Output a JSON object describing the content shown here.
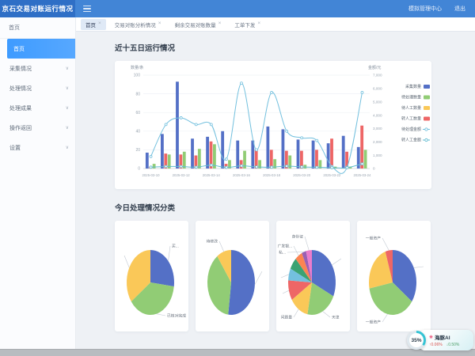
{
  "topbar": {
    "title": "京石交易对账运行情况",
    "links": [
      "模拟管理中心",
      "退出"
    ]
  },
  "sidebar": {
    "header_item": "首页",
    "items": [
      {
        "label": "首页",
        "active": true,
        "expandable": false
      },
      {
        "label": "采集情况",
        "active": false,
        "expandable": true
      },
      {
        "label": "处理情况",
        "active": false,
        "expandable": true
      },
      {
        "label": "处理成果",
        "active": false,
        "expandable": true
      },
      {
        "label": "操作返回",
        "active": false,
        "expandable": true
      },
      {
        "label": "设置",
        "active": false,
        "expandable": true
      }
    ]
  },
  "tabs": [
    {
      "label": "首页",
      "active": true,
      "closable": true
    },
    {
      "label": "交易对账分析情况",
      "active": false,
      "closable": true
    },
    {
      "label": "剩余交易对账数量",
      "active": false,
      "closable": true
    },
    {
      "label": "工单下发",
      "active": false,
      "closable": true
    }
  ],
  "sections": {
    "chart_title": "近十五日运行情况",
    "pies_title": "今日处理情况分类"
  },
  "chart_data": [
    {
      "type": "bar",
      "subtype": "bar+line combo",
      "title": "近十五日运行情况",
      "x": [
        "2025-03-10",
        "2025-03-11",
        "2025-03-12",
        "2025-03-13",
        "2025-03-14",
        "2025-03-15",
        "2025-03-16",
        "2025-03-17",
        "2025-03-18",
        "2025-03-19",
        "2025-03-20",
        "2025-03-21",
        "2025-03-22",
        "2025-03-23",
        "2025-03-24"
      ],
      "x_label_every": 2,
      "left_axis": {
        "label": "数量/条",
        "min": 0,
        "max": 100,
        "step": 20
      },
      "right_axis": {
        "label": "金额/元",
        "min": 0,
        "max": 7000,
        "step": 1000
      },
      "legend_position": "right",
      "grid": true,
      "series": [
        {
          "name": "采集数量",
          "kind": "bar",
          "color": "#5470c6",
          "slot": 0,
          "values": [
            17,
            37,
            93,
            32,
            34,
            40,
            30,
            30,
            45,
            42,
            31,
            30,
            27,
            35,
            23
          ]
        },
        {
          "name": "待处理数量",
          "kind": "bar",
          "color": "#91cc75",
          "slot": 2,
          "values": [
            5,
            15,
            18,
            21,
            26,
            9,
            19,
            9,
            10,
            14,
            4,
            9,
            2,
            2,
            20
          ]
        },
        {
          "name": "待人工数量",
          "kind": "bar",
          "color": "#fac858",
          "slot": 3,
          "values": [
            0,
            0,
            0,
            0,
            0,
            0,
            0,
            0,
            0,
            0,
            0,
            0,
            0,
            0,
            0
          ]
        },
        {
          "name": "转人工数量",
          "kind": "bar",
          "color": "#ee6666",
          "slot": 1,
          "values": [
            2,
            16,
            15,
            14,
            29,
            5,
            9,
            20,
            20,
            19,
            19,
            20,
            32,
            18,
            46
          ]
        },
        {
          "name": "待处理金额",
          "kind": "line",
          "axis": "right",
          "color": "#73c0de",
          "values": [
            900,
            3300,
            3800,
            3300,
            3300,
            700,
            6400,
            1400,
            5700,
            2800,
            2300,
            2100,
            150,
            100,
            5700
          ]
        },
        {
          "name": "转人工金额",
          "kind": "line",
          "axis": "right",
          "color": "#62bcd2",
          "values": [
            100,
            150,
            150,
            100,
            250,
            80,
            200,
            120,
            100,
            180,
            120,
            90,
            60,
            60,
            350
          ]
        }
      ]
    },
    {
      "type": "pie",
      "title": "今日处理情况分类-1",
      "slices": [
        {
          "label": "买...",
          "value": 27,
          "color": "#5470c6",
          "leader": true,
          "label_pos": [
            70,
            32
          ]
        },
        {
          "label": "已核对完成",
          "value": 38,
          "color": "#91cc75",
          "leader": true,
          "label_pos": [
            64,
            120
          ]
        },
        {
          "label": "",
          "value": 35,
          "color": "#fac858",
          "leader": true,
          "label_pos": [
            12,
            44
          ]
        }
      ]
    },
    {
      "type": "pie",
      "title": "今日处理情况分类-2",
      "slices": [
        {
          "label": "",
          "value": 52,
          "color": "#5470c6",
          "leader": true,
          "label_pos": [
            84,
            64
          ]
        },
        {
          "label": "",
          "value": 38,
          "color": "#91cc75",
          "leader": false
        },
        {
          "label": "待修改",
          "value": 10,
          "color": "#fac858",
          "leader": true,
          "label_pos": [
            30,
            26
          ]
        }
      ]
    },
    {
      "type": "pie",
      "title": "今日处理情况分类-3",
      "slices": [
        {
          "label": "",
          "value": 32,
          "color": "#5470c6",
          "leader": true,
          "label_pos": [
            82,
            48
          ]
        },
        {
          "label": "天津",
          "value": 21,
          "color": "#91cc75",
          "leader": true,
          "label_pos": [
            68,
            122
          ]
        },
        {
          "label": "问题量",
          "value": 13,
          "color": "#fac858",
          "leader": true,
          "label_pos": [
            22,
            122
          ]
        },
        {
          "label": "",
          "value": 10,
          "color": "#ee6666",
          "leader": true,
          "label_pos": [
            8,
            92
          ]
        },
        {
          "label": "",
          "value": 6,
          "color": "#73c0de",
          "leader": true,
          "label_pos": [
            6,
            72
          ]
        },
        {
          "label": "",
          "value": 6,
          "color": "#3ba272",
          "leader": false
        },
        {
          "label": "广发银...",
          "value": 5,
          "color": "#fc8452",
          "leader": true,
          "label_pos": [
            22,
            32
          ]
        },
        {
          "label": "私...",
          "value": 3,
          "color": "#9a60b4",
          "leader": true,
          "label_pos": [
            14,
            40
          ]
        },
        {
          "label": "身份证",
          "value": 4,
          "color": "#ea7ccc",
          "leader": true,
          "label_pos": [
            36,
            20
          ]
        }
      ]
    },
    {
      "type": "pie",
      "title": "今日处理情况分类-4",
      "slices": [
        {
          "label": "",
          "value": 35,
          "color": "#5470c6",
          "leader": true,
          "label_pos": [
            84,
            58
          ]
        },
        {
          "label": "一般资产",
          "value": 37,
          "color": "#91cc75",
          "leader": true,
          "label_pos": [
            32,
            128
          ]
        },
        {
          "label": "",
          "value": 23,
          "color": "#fac858",
          "leader": false
        },
        {
          "label": "一般资产",
          "value": 5,
          "color": "#ee6666",
          "leader": true,
          "label_pos": [
            32,
            22
          ]
        }
      ]
    }
  ],
  "assistant": {
    "progress": "35%",
    "icon": "✳",
    "name": "海豚AI",
    "change_up": "↑0.06%",
    "change_down": "↓0.50%"
  }
}
